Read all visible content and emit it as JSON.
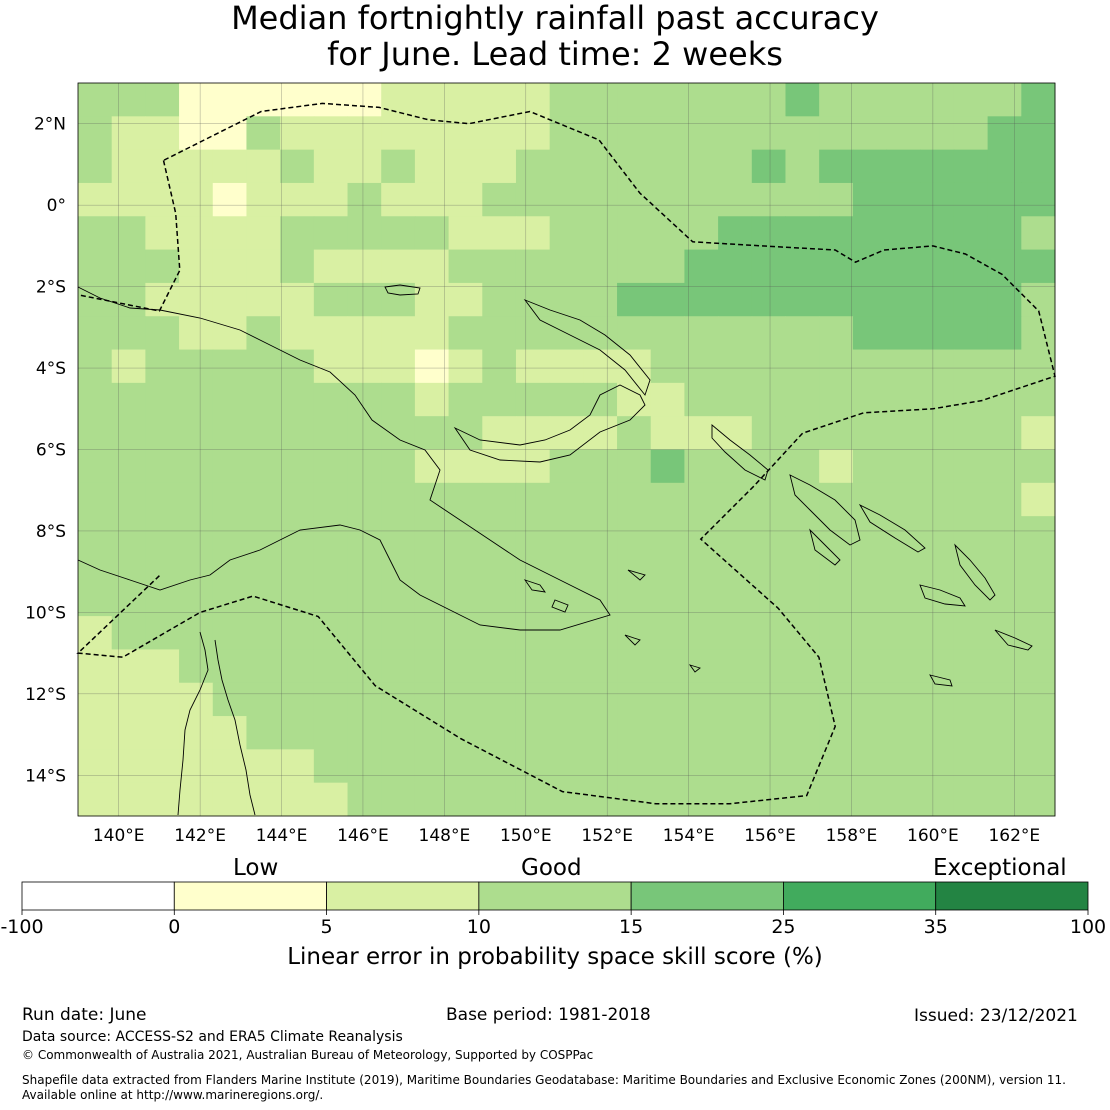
{
  "title_line1": "Median fortnightly rainfall past accuracy",
  "title_line2": "for June. Lead time: 2 weeks",
  "map": {
    "lon_ticks": [
      "140°E",
      "142°E",
      "144°E",
      "146°E",
      "148°E",
      "150°E",
      "152°E",
      "154°E",
      "156°E",
      "158°E",
      "160°E",
      "162°E"
    ],
    "lat_ticks": [
      "2°N",
      "0°",
      "2°S",
      "4°S",
      "6°S",
      "8°S",
      "10°S",
      "12°S",
      "14°S"
    ],
    "lon_range": [
      139,
      163
    ],
    "lat_range": [
      -15,
      3
    ],
    "grid_cols": 29,
    "grid_rows": 22,
    "category_rows": [
      "33311111122222333333343333334",
      "32211322222222333333333333344",
      "32222232232223333333434444444",
      "22221222322233333333333444444",
      "33222233333222333334444444443",
      "33322232222333333344444444444",
      "33222223332233334444444444443",
      "33322322222333333333333444443",
      "32333332221232222333333333333",
      "33333333332333332233333333333",
      "33333333333322223222333333332",
      "33333333332222333433332333333",
      "33333333333333333333333333332",
      "33333333333333333333333333333",
      "33333333333333333333333333333",
      "33333333333333333333333333333",
      "23333333333333333333333333333",
      "22233333333333333333333333333",
      "22223333333333333333333333333",
      "22222333333333333333333333333",
      "22222223333333333333333333333",
      "22222222333333333333333333333"
    ],
    "category_colors": [
      "#ffffff",
      "#ffffcc",
      "#d9f0a3",
      "#addd8e",
      "#78c679",
      "#41ab5d",
      "#238443"
    ],
    "eez_boundary": [
      [
        141.1,
        1.1
      ],
      [
        141.4,
        -0.2
      ],
      [
        141.5,
        -1.6
      ],
      [
        141.0,
        -2.6
      ],
      [
        139.0,
        -2.2
      ]
    ],
    "eez_boundary_south": [
      [
        141.0,
        -9.1
      ],
      [
        139.0,
        -11.0
      ],
      [
        140.1,
        -11.1
      ],
      [
        142.0,
        -10.0
      ],
      [
        143.3,
        -9.6
      ],
      [
        144.9,
        -10.1
      ],
      [
        146.3,
        -11.8
      ],
      [
        148.4,
        -13.1
      ],
      [
        150.9,
        -14.4
      ],
      [
        153.2,
        -14.7
      ],
      [
        155.0,
        -14.7
      ],
      [
        156.9,
        -14.5
      ],
      [
        157.6,
        -12.8
      ],
      [
        157.2,
        -11.1
      ],
      [
        156.2,
        -9.9
      ],
      [
        154.3,
        -8.2
      ],
      [
        155.6,
        -6.9
      ],
      [
        156.8,
        -5.6
      ],
      [
        158.3,
        -5.1
      ],
      [
        160.0,
        -5.0
      ],
      [
        161.2,
        -4.8
      ],
      [
        163.0,
        -4.2
      ],
      [
        162.6,
        -2.6
      ],
      [
        161.7,
        -1.7
      ],
      [
        160.8,
        -1.2
      ],
      [
        160.0,
        -1.0
      ],
      [
        158.8,
        -1.1
      ],
      [
        158.1,
        -1.4
      ],
      [
        157.6,
        -1.1
      ],
      [
        155.8,
        -1.0
      ],
      [
        154.1,
        -0.9
      ],
      [
        152.8,
        0.3
      ],
      [
        151.8,
        1.6
      ],
      [
        150.1,
        2.3
      ],
      [
        148.6,
        2.0
      ],
      [
        147.6,
        2.1
      ],
      [
        146.4,
        2.4
      ],
      [
        145.0,
        2.5
      ],
      [
        143.5,
        2.3
      ],
      [
        142.1,
        1.6
      ],
      [
        141.1,
        1.1
      ]
    ]
  },
  "colorbar": {
    "labels": [
      "-100",
      "0",
      "5",
      "10",
      "15",
      "25",
      "35",
      "100"
    ],
    "categories": [
      "Low",
      "Good",
      "Exceptional"
    ],
    "caption": "Linear error in probability space skill score (%)"
  },
  "footer": {
    "run_date": "Run date: June",
    "base_period": "Base period: 1981-2018",
    "issued": "Issued: 23/12/2021",
    "data_source": "Data source: ACCESS-S2 and ERA5 Climate Reanalysis",
    "copyright": "© Commonwealth of Australia 2021, Australian Bureau of Meteorology, Supported by COSPPac",
    "shapefile_line1": "Shapefile data extracted from Flanders Marine Institute (2019), Maritime Boundaries Geodatabase: Maritime Boundaries and Exclusive Economic Zones (200NM), version 11.",
    "shapefile_line2": "Available online at http://www.marineregions.org/."
  }
}
